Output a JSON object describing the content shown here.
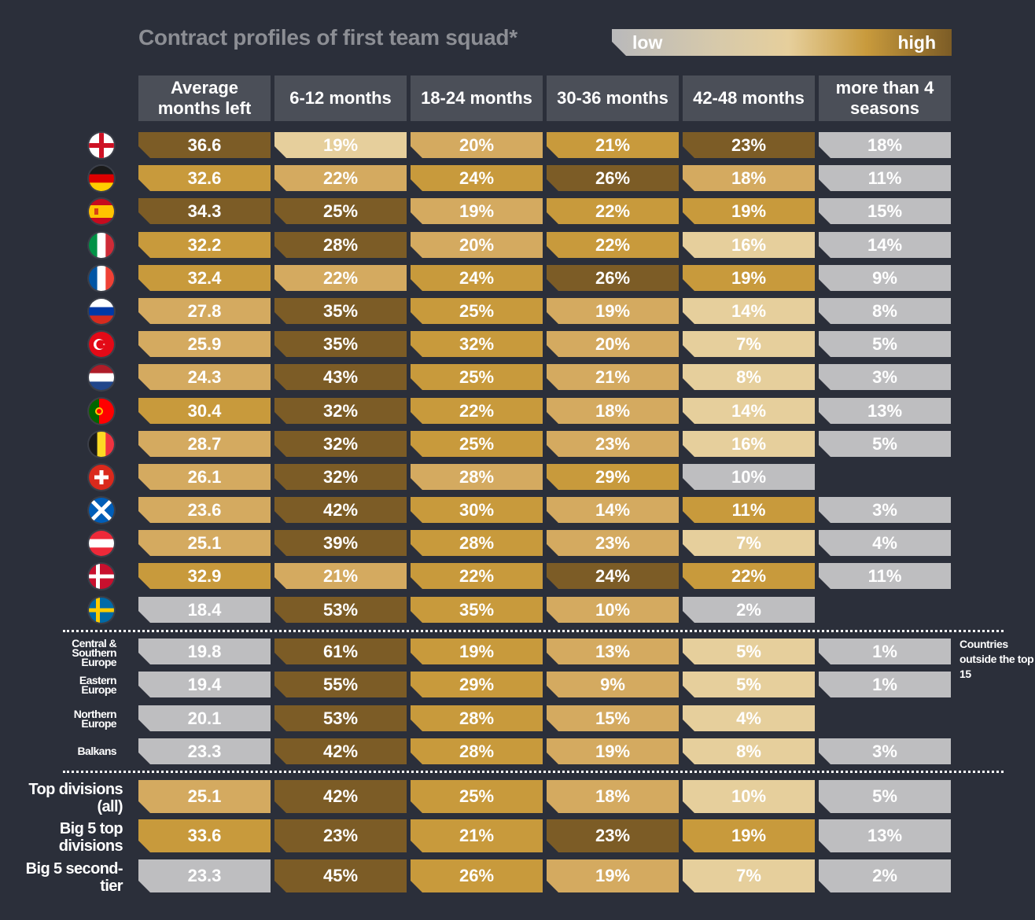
{
  "title": "Contract profiles of first team squad*",
  "legend": {
    "low": "low",
    "high": "high"
  },
  "colors": {
    "background": "#2b2f3a",
    "header": "#4b4f58",
    "dark": "#7c5c26",
    "mid": "#c89a3c",
    "light": "#d4aa60",
    "pale": "#e6cf9c",
    "grey": "#bebec0"
  },
  "side_note": "Countries outside the top 15",
  "chart_data": {
    "type": "table",
    "columns": [
      "Average months left",
      "6-12 months",
      "18-24 months",
      "30-36 months",
      "42-48 months",
      "more than 4 seasons"
    ],
    "rows": [
      {
        "label": "",
        "icon": "england-flag-icon",
        "values": [
          "36.6",
          "19%",
          "20%",
          "21%",
          "23%",
          "18%"
        ],
        "levels": [
          "dark",
          "pale",
          "light",
          "mid",
          "dark",
          "grey"
        ]
      },
      {
        "label": "",
        "icon": "germany-flag-icon",
        "values": [
          "32.6",
          "22%",
          "24%",
          "26%",
          "18%",
          "11%"
        ],
        "levels": [
          "mid",
          "light",
          "mid",
          "dark",
          "light",
          "grey"
        ]
      },
      {
        "label": "",
        "icon": "spain-flag-icon",
        "values": [
          "34.3",
          "25%",
          "19%",
          "22%",
          "19%",
          "15%"
        ],
        "levels": [
          "dark",
          "dark",
          "light",
          "mid",
          "mid",
          "grey"
        ]
      },
      {
        "label": "",
        "icon": "italy-flag-icon",
        "values": [
          "32.2",
          "28%",
          "20%",
          "22%",
          "16%",
          "14%"
        ],
        "levels": [
          "mid",
          "dark",
          "light",
          "mid",
          "pale",
          "grey"
        ]
      },
      {
        "label": "",
        "icon": "france-flag-icon",
        "values": [
          "32.4",
          "22%",
          "24%",
          "26%",
          "19%",
          "9%"
        ],
        "levels": [
          "mid",
          "light",
          "mid",
          "dark",
          "mid",
          "grey"
        ]
      },
      {
        "label": "",
        "icon": "russia-flag-icon",
        "values": [
          "27.8",
          "35%",
          "25%",
          "19%",
          "14%",
          "8%"
        ],
        "levels": [
          "light",
          "dark",
          "mid",
          "light",
          "pale",
          "grey"
        ]
      },
      {
        "label": "",
        "icon": "turkey-flag-icon",
        "values": [
          "25.9",
          "35%",
          "32%",
          "20%",
          "7%",
          "5%"
        ],
        "levels": [
          "light",
          "dark",
          "mid",
          "light",
          "pale",
          "grey"
        ]
      },
      {
        "label": "",
        "icon": "netherlands-flag-icon",
        "values": [
          "24.3",
          "43%",
          "25%",
          "21%",
          "8%",
          "3%"
        ],
        "levels": [
          "light",
          "dark",
          "mid",
          "light",
          "pale",
          "grey"
        ]
      },
      {
        "label": "",
        "icon": "portugal-flag-icon",
        "values": [
          "30.4",
          "32%",
          "22%",
          "18%",
          "14%",
          "13%"
        ],
        "levels": [
          "mid",
          "dark",
          "mid",
          "light",
          "pale",
          "grey"
        ]
      },
      {
        "label": "",
        "icon": "belgium-flag-icon",
        "values": [
          "28.7",
          "32%",
          "25%",
          "23%",
          "16%",
          "5%"
        ],
        "levels": [
          "light",
          "dark",
          "mid",
          "light",
          "pale",
          "grey"
        ]
      },
      {
        "label": "",
        "icon": "switzerland-flag-icon",
        "values": [
          "26.1",
          "32%",
          "28%",
          "29%",
          "10%",
          ""
        ],
        "levels": [
          "light",
          "dark",
          "light",
          "mid",
          "grey",
          "none"
        ]
      },
      {
        "label": "",
        "icon": "scotland-flag-icon",
        "values": [
          "23.6",
          "42%",
          "30%",
          "14%",
          "11%",
          "3%"
        ],
        "levels": [
          "light",
          "dark",
          "mid",
          "light",
          "mid",
          "grey"
        ]
      },
      {
        "label": "",
        "icon": "austria-flag-icon",
        "values": [
          "25.1",
          "39%",
          "28%",
          "23%",
          "7%",
          "4%"
        ],
        "levels": [
          "light",
          "dark",
          "mid",
          "light",
          "pale",
          "grey"
        ]
      },
      {
        "label": "",
        "icon": "denmark-flag-icon",
        "values": [
          "32.9",
          "21%",
          "22%",
          "24%",
          "22%",
          "11%"
        ],
        "levels": [
          "mid",
          "light",
          "mid",
          "dark",
          "mid",
          "grey"
        ]
      },
      {
        "label": "",
        "icon": "sweden-flag-icon",
        "values": [
          "18.4",
          "53%",
          "35%",
          "10%",
          "2%",
          ""
        ],
        "levels": [
          "grey",
          "dark",
          "mid",
          "light",
          "grey",
          "none"
        ]
      },
      {
        "label": "Central & Southern Europe",
        "icon": "",
        "values": [
          "19.8",
          "61%",
          "19%",
          "13%",
          "5%",
          "1%"
        ],
        "levels": [
          "grey",
          "dark",
          "mid",
          "light",
          "pale",
          "grey"
        ]
      },
      {
        "label": "Eastern Europe",
        "icon": "",
        "values": [
          "19.4",
          "55%",
          "29%",
          "9%",
          "5%",
          "1%"
        ],
        "levels": [
          "grey",
          "dark",
          "mid",
          "light",
          "pale",
          "grey"
        ]
      },
      {
        "label": "Northern Europe",
        "icon": "",
        "values": [
          "20.1",
          "53%",
          "28%",
          "15%",
          "4%",
          ""
        ],
        "levels": [
          "grey",
          "dark",
          "mid",
          "light",
          "pale",
          "none"
        ]
      },
      {
        "label": "Balkans",
        "icon": "",
        "values": [
          "23.3",
          "42%",
          "28%",
          "19%",
          "8%",
          "3%"
        ],
        "levels": [
          "grey",
          "dark",
          "mid",
          "light",
          "pale",
          "grey"
        ]
      },
      {
        "label": "Top divisions (all)",
        "icon": "",
        "values": [
          "25.1",
          "42%",
          "25%",
          "18%",
          "10%",
          "5%"
        ],
        "levels": [
          "light",
          "dark",
          "mid",
          "light",
          "pale",
          "grey"
        ]
      },
      {
        "label": "Big 5 top divisions",
        "icon": "",
        "values": [
          "33.6",
          "23%",
          "21%",
          "23%",
          "19%",
          "13%"
        ],
        "levels": [
          "mid",
          "dark",
          "mid",
          "dark",
          "mid",
          "grey"
        ]
      },
      {
        "label": "Big 5 second-tier",
        "icon": "",
        "values": [
          "23.3",
          "45%",
          "26%",
          "19%",
          "7%",
          "2%"
        ],
        "levels": [
          "grey",
          "dark",
          "mid",
          "light",
          "pale",
          "grey"
        ]
      }
    ]
  }
}
